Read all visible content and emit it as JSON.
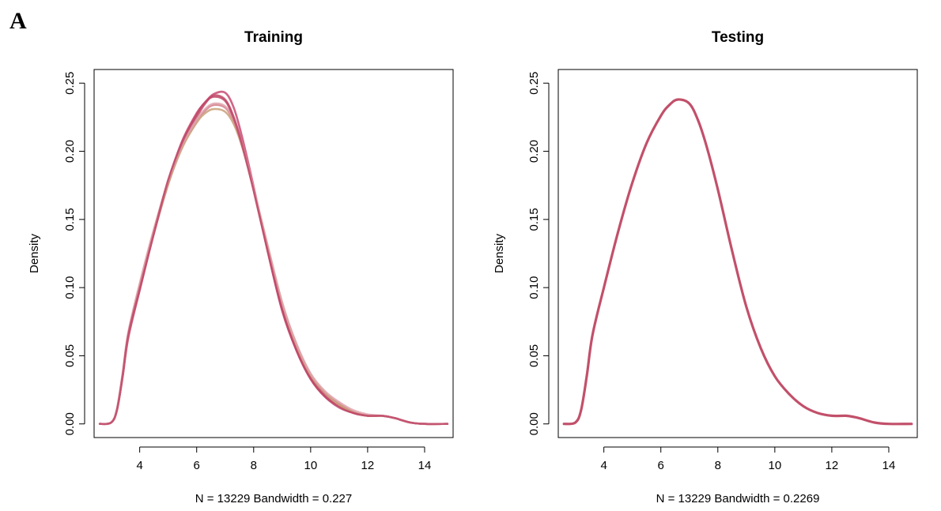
{
  "panel_label": "A",
  "chart_data": [
    {
      "type": "line",
      "title": "Training",
      "xlabel": "N = 13229   Bandwidth = 0.227",
      "ylabel": "Density",
      "xlim": [
        2.4,
        15.0
      ],
      "ylim": [
        -0.01,
        0.26
      ],
      "xticks": [
        "4",
        "6",
        "8",
        "10",
        "12",
        "14"
      ],
      "yticks": [
        "0.00",
        "0.05",
        "0.10",
        "0.15",
        "0.20",
        "0.25"
      ],
      "grid": false,
      "x": [
        2.6,
        3.0,
        3.2,
        3.4,
        3.6,
        4.0,
        4.5,
        5.0,
        5.5,
        6.0,
        6.3,
        6.6,
        7.0,
        7.3,
        7.6,
        8.0,
        8.5,
        9.0,
        9.5,
        10.0,
        10.5,
        11.0,
        11.5,
        12.0,
        12.5,
        12.8,
        13.0,
        13.5,
        14.0,
        14.8
      ],
      "series": [
        {
          "color": "#c2506a",
          "values": [
            0.0,
            0.001,
            0.01,
            0.035,
            0.065,
            0.1,
            0.14,
            0.176,
            0.205,
            0.225,
            0.235,
            0.241,
            0.238,
            0.225,
            0.205,
            0.172,
            0.127,
            0.085,
            0.055,
            0.034,
            0.021,
            0.013,
            0.008,
            0.006,
            0.006,
            0.005,
            0.004,
            0.001,
            0.0,
            0.0
          ]
        },
        {
          "color": "#c84a73",
          "values": [
            0.0,
            0.001,
            0.01,
            0.034,
            0.063,
            0.098,
            0.14,
            0.178,
            0.208,
            0.228,
            0.236,
            0.242,
            0.243,
            0.232,
            0.21,
            0.174,
            0.126,
            0.083,
            0.054,
            0.033,
            0.02,
            0.013,
            0.008,
            0.006,
            0.006,
            0.005,
            0.004,
            0.001,
            0.0,
            0.0
          ]
        },
        {
          "color": "#d07a85",
          "values": [
            0.0,
            0.001,
            0.01,
            0.036,
            0.066,
            0.102,
            0.142,
            0.177,
            0.204,
            0.222,
            0.23,
            0.234,
            0.232,
            0.222,
            0.204,
            0.172,
            0.129,
            0.088,
            0.058,
            0.036,
            0.023,
            0.015,
            0.009,
            0.006,
            0.006,
            0.005,
            0.004,
            0.001,
            0.0,
            0.0
          ]
        },
        {
          "color": "#c9a078",
          "values": [
            0.0,
            0.001,
            0.01,
            0.035,
            0.065,
            0.101,
            0.141,
            0.176,
            0.203,
            0.221,
            0.228,
            0.231,
            0.229,
            0.22,
            0.203,
            0.172,
            0.13,
            0.089,
            0.058,
            0.036,
            0.023,
            0.014,
            0.009,
            0.006,
            0.006,
            0.005,
            0.004,
            0.001,
            0.0,
            0.0
          ]
        },
        {
          "color": "#e0a3ad",
          "values": [
            0.0,
            0.001,
            0.011,
            0.037,
            0.067,
            0.103,
            0.143,
            0.178,
            0.205,
            0.223,
            0.231,
            0.235,
            0.233,
            0.223,
            0.205,
            0.173,
            0.13,
            0.089,
            0.059,
            0.037,
            0.024,
            0.016,
            0.01,
            0.007,
            0.006,
            0.005,
            0.004,
            0.001,
            0.0,
            0.0
          ]
        },
        {
          "color": "#c04869",
          "values": [
            0.0,
            0.001,
            0.01,
            0.035,
            0.065,
            0.099,
            0.14,
            0.179,
            0.207,
            0.227,
            0.236,
            0.24,
            0.237,
            0.224,
            0.204,
            0.171,
            0.126,
            0.084,
            0.054,
            0.033,
            0.02,
            0.012,
            0.008,
            0.006,
            0.006,
            0.005,
            0.004,
            0.001,
            0.0,
            0.0
          ]
        }
      ]
    },
    {
      "type": "line",
      "title": "Testing",
      "xlabel": "N = 13229   Bandwidth = 0.2269",
      "ylabel": "Density",
      "xlim": [
        2.4,
        15.0
      ],
      "ylim": [
        -0.01,
        0.26
      ],
      "xticks": [
        "4",
        "6",
        "8",
        "10",
        "12",
        "14"
      ],
      "yticks": [
        "0.00",
        "0.05",
        "0.10",
        "0.15",
        "0.20",
        "0.25"
      ],
      "grid": false,
      "x": [
        2.6,
        3.0,
        3.2,
        3.4,
        3.6,
        4.0,
        4.5,
        5.0,
        5.5,
        6.0,
        6.3,
        6.6,
        7.0,
        7.3,
        7.6,
        8.0,
        8.5,
        9.0,
        9.5,
        10.0,
        10.5,
        11.0,
        11.5,
        12.0,
        12.5,
        12.8,
        13.0,
        13.5,
        14.0,
        14.8
      ],
      "series": [
        {
          "color": "#c2506a",
          "values": [
            0.0,
            0.001,
            0.01,
            0.035,
            0.065,
            0.1,
            0.141,
            0.177,
            0.206,
            0.226,
            0.234,
            0.238,
            0.235,
            0.223,
            0.204,
            0.172,
            0.127,
            0.086,
            0.056,
            0.035,
            0.022,
            0.013,
            0.008,
            0.006,
            0.006,
            0.005,
            0.004,
            0.001,
            0.0,
            0.0
          ]
        }
      ]
    }
  ]
}
